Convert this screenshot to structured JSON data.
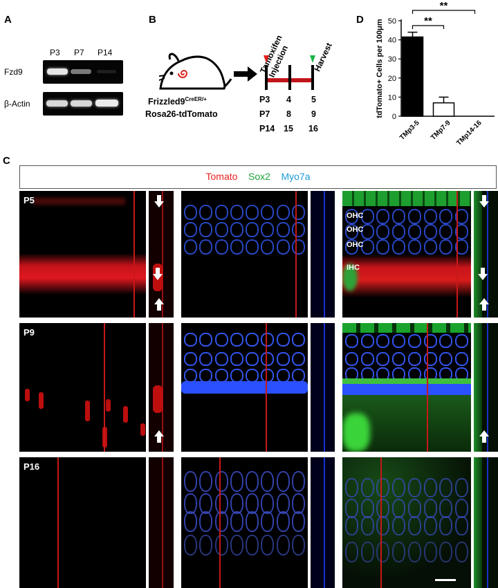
{
  "panelA": {
    "label": "A",
    "lanes": [
      "P3",
      "P7",
      "P14"
    ],
    "rows": [
      "Fzd9",
      "β-Actin"
    ]
  },
  "panelB": {
    "label": "B",
    "mouse_line1": "Frizzled9",
    "mouse_line1_sup": "CreER/+",
    "mouse_line2": "Rosa26-tdTomato",
    "tamoxifen": "Tamoxifen",
    "injection": "Injection",
    "harvest": "Harvest",
    "schedule": [
      [
        "P3",
        "4",
        "5"
      ],
      [
        "P7",
        "8",
        "9"
      ],
      [
        "P14",
        "15",
        "16"
      ]
    ],
    "colors": {
      "injection_marker": "#e0201c",
      "harvest_marker": "#19b34a",
      "bar": "#c0161b"
    }
  },
  "panelC": {
    "label": "C",
    "legend": {
      "tomato": "Tomato",
      "tomato_color": "#e8201d",
      "sox2": "Sox2",
      "sox2_color": "#1aa13a",
      "myo7a": "Myo7a",
      "myo7a_color": "#1a9bd8"
    },
    "rows": [
      "P5",
      "P9",
      "P16"
    ],
    "merge_labels": [
      "OHC",
      "OHC",
      "OHC",
      "IHC"
    ]
  },
  "panelD": {
    "label": "D"
  },
  "chart_data": {
    "type": "bar",
    "categories": [
      "TMp3-5",
      "TMp7-9",
      "TMp14-16"
    ],
    "values": [
      41.5,
      7.0,
      0
    ],
    "errors": [
      2.5,
      3.0,
      0
    ],
    "ylabel": "tdTomato+ Cells per 100μm",
    "ylim": [
      0,
      50
    ],
    "yticks": [
      0,
      10,
      20,
      30,
      40,
      50
    ],
    "bar_colors": [
      "#000000",
      "#ffffff",
      "#ffffff"
    ],
    "significance": [
      {
        "from": 0,
        "to": 1,
        "label": "**"
      },
      {
        "from": 0,
        "to": 2,
        "label": "**"
      }
    ]
  }
}
